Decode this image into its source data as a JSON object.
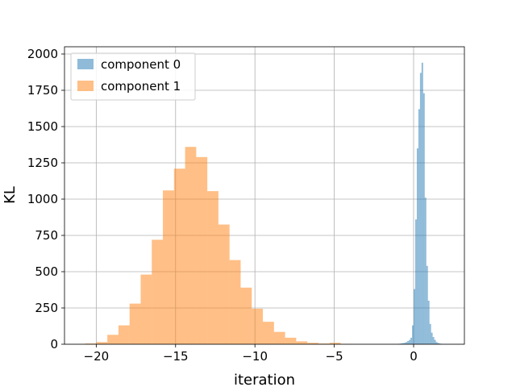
{
  "chart_data": {
    "type": "bar",
    "subtype": "histogram",
    "xlabel": "iteration",
    "ylabel": "KL",
    "xlim": [
      -22,
      3.2
    ],
    "ylim": [
      0,
      2050
    ],
    "xticks": [
      -20,
      -15,
      -10,
      -5,
      0
    ],
    "xtick_labels": [
      "−20",
      "−15",
      "−10",
      "−5",
      "0"
    ],
    "yticks": [
      0,
      250,
      500,
      750,
      1000,
      1250,
      1500,
      1750,
      2000
    ],
    "ytick_labels": [
      "0",
      "250",
      "500",
      "750",
      "1000",
      "1250",
      "1500",
      "1750",
      "2000"
    ],
    "grid": true,
    "legend_position": "top-left",
    "series": [
      {
        "name": "component 0",
        "color": "#1f77b4",
        "alpha": 0.5,
        "bins": [
          {
            "x0": -1.0,
            "x1": -0.9,
            "count": 2
          },
          {
            "x0": -0.9,
            "x1": -0.8,
            "count": 4
          },
          {
            "x0": -0.8,
            "x1": -0.7,
            "count": 6
          },
          {
            "x0": -0.7,
            "x1": -0.6,
            "count": 8
          },
          {
            "x0": -0.6,
            "x1": -0.5,
            "count": 10
          },
          {
            "x0": -0.5,
            "x1": -0.4,
            "count": 15
          },
          {
            "x0": -0.4,
            "x1": -0.3,
            "count": 22
          },
          {
            "x0": -0.3,
            "x1": -0.2,
            "count": 30
          },
          {
            "x0": -0.2,
            "x1": -0.1,
            "count": 45
          },
          {
            "x0": -0.1,
            "x1": 0.0,
            "count": 130
          },
          {
            "x0": 0.0,
            "x1": 0.1,
            "count": 380
          },
          {
            "x0": 0.1,
            "x1": 0.2,
            "count": 860
          },
          {
            "x0": 0.2,
            "x1": 0.3,
            "count": 1350
          },
          {
            "x0": 0.3,
            "x1": 0.4,
            "count": 1620
          },
          {
            "x0": 0.4,
            "x1": 0.5,
            "count": 1870
          },
          {
            "x0": 0.5,
            "x1": 0.6,
            "count": 1940
          },
          {
            "x0": 0.6,
            "x1": 0.7,
            "count": 1730
          },
          {
            "x0": 0.7,
            "x1": 0.8,
            "count": 1010
          },
          {
            "x0": 0.8,
            "x1": 0.9,
            "count": 540
          },
          {
            "x0": 0.9,
            "x1": 1.0,
            "count": 300
          },
          {
            "x0": 1.0,
            "x1": 1.1,
            "count": 140
          },
          {
            "x0": 1.1,
            "x1": 1.2,
            "count": 80
          },
          {
            "x0": 1.2,
            "x1": 1.3,
            "count": 50
          },
          {
            "x0": 1.3,
            "x1": 1.4,
            "count": 30
          },
          {
            "x0": 1.4,
            "x1": 1.5,
            "count": 15
          },
          {
            "x0": 1.5,
            "x1": 1.6,
            "count": 9
          },
          {
            "x0": 1.6,
            "x1": 1.7,
            "count": 5
          },
          {
            "x0": 1.7,
            "x1": 1.8,
            "count": 3
          },
          {
            "x0": 1.8,
            "x1": 1.9,
            "count": 2
          }
        ]
      },
      {
        "name": "component 1",
        "color": "#ff7f0e",
        "alpha": 0.5,
        "bins": [
          {
            "x0": -20.7,
            "x1": -20.0,
            "count": 5
          },
          {
            "x0": -20.0,
            "x1": -19.3,
            "count": 15
          },
          {
            "x0": -19.3,
            "x1": -18.6,
            "count": 65
          },
          {
            "x0": -18.6,
            "x1": -17.9,
            "count": 130
          },
          {
            "x0": -17.9,
            "x1": -17.2,
            "count": 280
          },
          {
            "x0": -17.2,
            "x1": -16.5,
            "count": 480
          },
          {
            "x0": -16.5,
            "x1": -15.8,
            "count": 720
          },
          {
            "x0": -15.8,
            "x1": -15.1,
            "count": 1060
          },
          {
            "x0": -15.1,
            "x1": -14.4,
            "count": 1210
          },
          {
            "x0": -14.4,
            "x1": -13.7,
            "count": 1360
          },
          {
            "x0": -13.7,
            "x1": -13.0,
            "count": 1290
          },
          {
            "x0": -13.0,
            "x1": -12.3,
            "count": 1055
          },
          {
            "x0": -12.3,
            "x1": -11.6,
            "count": 825
          },
          {
            "x0": -11.6,
            "x1": -10.9,
            "count": 580
          },
          {
            "x0": -10.9,
            "x1": -10.2,
            "count": 390
          },
          {
            "x0": -10.2,
            "x1": -9.5,
            "count": 245
          },
          {
            "x0": -9.5,
            "x1": -8.8,
            "count": 155
          },
          {
            "x0": -8.8,
            "x1": -8.1,
            "count": 85
          },
          {
            "x0": -8.1,
            "x1": -7.4,
            "count": 45
          },
          {
            "x0": -7.4,
            "x1": -6.7,
            "count": 20
          },
          {
            "x0": -6.7,
            "x1": -6.0,
            "count": 10
          },
          {
            "x0": -6.0,
            "x1": -5.3,
            "count": 5
          },
          {
            "x0": -5.3,
            "x1": -4.6,
            "count": 10
          },
          {
            "x0": -4.6,
            "x1": -3.9,
            "count": 2
          }
        ]
      }
    ]
  }
}
